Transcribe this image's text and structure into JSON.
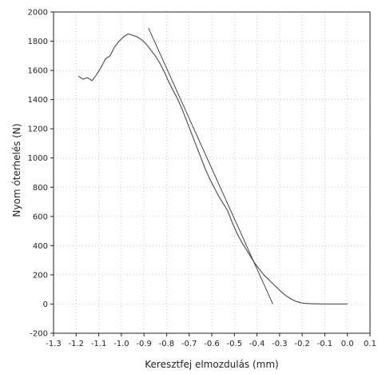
{
  "chart_data": {
    "type": "line",
    "title": "",
    "xlabel": "Keresztfej elmozdulás (mm)",
    "ylabel": "Nyom óterhelés (N)",
    "xlim": [
      -1.3,
      0.1
    ],
    "ylim": [
      -200,
      2000
    ],
    "xticks": [
      -1.3,
      -1.2,
      -1.1,
      -1.0,
      -0.9,
      -0.8,
      -0.7,
      -0.6,
      -0.5,
      -0.4,
      -0.3,
      -0.2,
      -0.1,
      0.0,
      0.1
    ],
    "xtick_labels": [
      "-1.3",
      "-1.2",
      "-1.1",
      "-1.0",
      "-0.9",
      "-0.8",
      "-0.7",
      "-0.6",
      "-0.5",
      "-0.4",
      "-0.3",
      "-0.2",
      "-0.1",
      "0.0",
      "0.1"
    ],
    "yticks": [
      -200,
      0,
      200,
      400,
      600,
      800,
      1000,
      1200,
      1400,
      1600,
      1800,
      2000
    ],
    "ytick_labels": [
      "-200",
      "0",
      "200",
      "400",
      "600",
      "800",
      "1000",
      "1200",
      "1400",
      "1600",
      "1800",
      "2000"
    ],
    "grid": true,
    "series": [
      {
        "color": "#555555",
        "x": [
          -1.19,
          -1.17,
          -1.15,
          -1.13,
          -1.11,
          -1.09,
          -1.07,
          -1.05,
          -1.03,
          -1.01,
          -0.99,
          -0.97,
          -0.95,
          -0.93,
          -0.91,
          -0.89,
          -0.87,
          -0.85,
          -0.83,
          -0.81,
          -0.79,
          -0.77,
          -0.75,
          -0.73,
          -0.71,
          -0.69,
          -0.67,
          -0.65,
          -0.63,
          -0.61,
          -0.59,
          -0.57,
          -0.55,
          -0.53,
          -0.51,
          -0.49,
          -0.47,
          -0.45,
          -0.43,
          -0.41,
          -0.39,
          -0.37,
          -0.35,
          -0.33,
          -0.31,
          -0.29,
          -0.27,
          -0.25,
          -0.23,
          -0.21,
          -0.19,
          -0.17,
          -0.15,
          -0.13,
          -0.11,
          -0.09,
          -0.07,
          -0.05,
          -0.03,
          -0.01,
          0.0
        ],
        "y": [
          1560,
          1540,
          1550,
          1530,
          1570,
          1620,
          1680,
          1700,
          1760,
          1800,
          1830,
          1850,
          1840,
          1830,
          1810,
          1780,
          1740,
          1700,
          1650,
          1590,
          1520,
          1460,
          1400,
          1330,
          1250,
          1170,
          1090,
          1010,
          930,
          860,
          800,
          740,
          690,
          640,
          560,
          490,
          430,
          380,
          330,
          280,
          240,
          200,
          170,
          140,
          110,
          80,
          55,
          35,
          20,
          10,
          5,
          3,
          2,
          1,
          0,
          0,
          0,
          0,
          0,
          0,
          0
        ]
      },
      {
        "color": "#333333",
        "x": [
          -0.88,
          -0.33
        ],
        "y": [
          1890,
          0
        ]
      }
    ]
  }
}
